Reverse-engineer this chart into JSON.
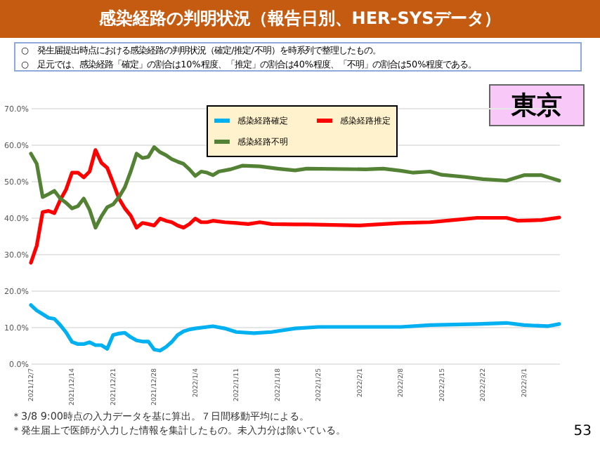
{
  "chart_data": {
    "type": "line",
    "title": "感染経路の判明状況（報告日別、HER-SYSデータ）",
    "subtitle": "東京",
    "annotations": [
      "○　発生届提出時点における感染経路の判明状況（確定/推定/不明）を時系列で整理したもの。",
      "○　足元では、感染経路「確定」の割合は10%程度、「推定」の割合は40%程度、「不明」の割合は50%程度である。",
      "＊3/8 9:00時点の入力データを基に算出。７日間移動平均による。",
      "＊発生届上で医師が入力した情報を集計したもの。未入力分は除いている。",
      "53"
    ],
    "xlim": [
      "2021-12-07",
      "2022-03-07"
    ],
    "xticks": [
      {
        "value": "2021-12-07",
        "label": "2021/12/7"
      },
      {
        "value": "2021-12-14",
        "label": "2021/12/14"
      },
      {
        "value": "2021-12-21",
        "label": "2021/12/21"
      },
      {
        "value": "2021-12-28",
        "label": "2021/12/28"
      },
      {
        "value": "2022-01-04",
        "label": "2022/1/4"
      },
      {
        "value": "2022-01-11",
        "label": "2022/1/11"
      },
      {
        "value": "2022-01-18",
        "label": "2022/1/18"
      },
      {
        "value": "2022-01-25",
        "label": "2022/1/25"
      },
      {
        "value": "2022-02-01",
        "label": "2022/2/1"
      },
      {
        "value": "2022-02-08",
        "label": "2022/2/8"
      },
      {
        "value": "2022-02-15",
        "label": "2022/2/15"
      },
      {
        "value": "2022-02-22",
        "label": "2022/2/22"
      },
      {
        "value": "2022-03-01",
        "label": "2022/3/1"
      }
    ],
    "ylim": [
      0,
      70
    ],
    "yticks": [
      {
        "value": 0,
        "label": "0.0%"
      },
      {
        "value": 10,
        "label": "10.0%"
      },
      {
        "value": 20,
        "label": "20.0%"
      },
      {
        "value": 30,
        "label": "30.0%"
      },
      {
        "value": 40,
        "label": "40.0%"
      },
      {
        "value": 50,
        "label": "50.0%"
      },
      {
        "value": 60,
        "label": "60.0%"
      },
      {
        "value": 70,
        "label": "70.0%"
      }
    ],
    "grid": "y",
    "legend": "top",
    "series": [
      {
        "name": "感染経路確定",
        "color": "#00b0f0",
        "x": [
          "2021-12-07",
          "2021-12-08",
          "2021-12-09",
          "2021-12-10",
          "2021-12-11",
          "2021-12-12",
          "2021-12-13",
          "2021-12-14",
          "2021-12-15",
          "2021-12-16",
          "2021-12-17",
          "2021-12-18",
          "2021-12-19",
          "2021-12-20",
          "2021-12-21",
          "2021-12-22",
          "2021-12-23",
          "2021-12-24",
          "2021-12-25",
          "2021-12-26",
          "2021-12-27",
          "2021-12-28",
          "2021-12-29",
          "2021-12-30",
          "2021-12-31",
          "2022-01-01",
          "2022-01-02",
          "2022-01-03",
          "2022-01-04",
          "2022-01-07",
          "2022-01-09",
          "2022-01-11",
          "2022-01-14",
          "2022-01-17",
          "2022-01-21",
          "2022-01-25",
          "2022-02-01",
          "2022-02-08",
          "2022-02-13",
          "2022-02-21",
          "2022-02-26",
          "2022-03-01",
          "2022-03-05",
          "2022-03-07"
        ],
        "values": [
          16,
          14.5,
          13.5,
          12.5,
          12.2,
          10.5,
          8.5,
          5.9,
          5.3,
          5.3,
          5.8,
          5,
          5,
          4,
          7.8,
          8.2,
          8.4,
          7.2,
          6.3,
          6,
          6,
          3.8,
          3.5,
          4.5,
          5.9,
          7.8,
          8.8,
          9.3,
          9.6,
          10.2,
          9.6,
          8.6,
          8.3,
          8.6,
          9.6,
          10,
          10,
          10,
          10.5,
          10.8,
          11.1,
          10.5,
          10.2,
          10.8
        ]
      },
      {
        "name": "感染経路推定",
        "color": "#ff0000",
        "x": [
          "2021-12-07",
          "2021-12-08",
          "2021-12-09",
          "2021-12-10",
          "2021-12-11",
          "2021-12-12",
          "2021-12-13",
          "2021-12-14",
          "2021-12-15",
          "2021-12-16",
          "2021-12-17",
          "2021-12-18",
          "2021-12-19",
          "2021-12-20",
          "2021-12-21",
          "2021-12-22",
          "2021-12-23",
          "2021-12-24",
          "2021-12-25",
          "2021-12-26",
          "2021-12-27",
          "2021-12-28",
          "2021-12-29",
          "2021-12-30",
          "2021-12-31",
          "2022-01-01",
          "2022-01-02",
          "2022-01-03",
          "2022-01-04",
          "2022-01-05",
          "2022-01-06",
          "2022-01-07",
          "2022-01-09",
          "2022-01-11",
          "2022-01-13",
          "2022-01-15",
          "2022-01-17",
          "2022-01-21",
          "2022-01-23",
          "2022-02-01",
          "2022-02-08",
          "2022-02-13",
          "2022-02-17",
          "2022-02-21",
          "2022-02-26",
          "2022-02-28",
          "2022-03-04",
          "2022-03-07"
        ],
        "values": [
          27.6,
          32.3,
          41.5,
          41.8,
          41.2,
          44.8,
          47.7,
          52.3,
          52.3,
          51,
          52.6,
          58.5,
          55,
          53.6,
          49.5,
          45.2,
          42.5,
          40.5,
          37.2,
          38.5,
          38.2,
          37.8,
          39.7,
          39.1,
          38.7,
          37.8,
          37.2,
          38.2,
          39.7,
          38.7,
          38.7,
          39.1,
          38.7,
          38.5,
          38.2,
          38.7,
          38.2,
          38.1,
          38.1,
          37.8,
          38.5,
          38.7,
          39.3,
          39.9,
          39.9,
          39.1,
          39.3,
          40
        ]
      },
      {
        "name": "感染経路不明",
        "color": "#548235",
        "x": [
          "2021-12-07",
          "2021-12-08",
          "2021-12-09",
          "2021-12-10",
          "2021-12-11",
          "2021-12-12",
          "2021-12-13",
          "2021-12-14",
          "2021-12-15",
          "2021-12-16",
          "2021-12-17",
          "2021-12-18",
          "2021-12-19",
          "2021-12-20",
          "2021-12-21",
          "2021-12-22",
          "2021-12-23",
          "2021-12-24",
          "2021-12-25",
          "2021-12-26",
          "2021-12-27",
          "2021-12-28",
          "2021-12-29",
          "2021-12-30",
          "2021-12-31",
          "2022-01-01",
          "2022-01-02",
          "2022-01-03",
          "2022-01-04",
          "2022-01-05",
          "2022-01-06",
          "2022-01-07",
          "2022-01-08",
          "2022-01-10",
          "2022-01-12",
          "2022-01-15",
          "2022-01-18",
          "2022-01-21",
          "2022-01-23",
          "2022-02-02",
          "2022-02-05",
          "2022-02-08",
          "2022-02-10",
          "2022-02-13",
          "2022-02-15",
          "2022-02-19",
          "2022-02-22",
          "2022-02-26",
          "2022-03-01",
          "2022-03-04",
          "2022-03-07"
        ],
        "values": [
          57.5,
          54.7,
          45.6,
          46.4,
          47.3,
          45.2,
          44,
          42.5,
          43.1,
          45.2,
          42.1,
          37.2,
          40.3,
          42.8,
          43.6,
          45.6,
          48.3,
          52.6,
          57.5,
          56.3,
          56.6,
          59.3,
          57.9,
          57.1,
          56,
          55.3,
          54.7,
          53.2,
          51.4,
          52.6,
          52.3,
          51.6,
          52.6,
          53.2,
          54.2,
          54,
          53.4,
          52.9,
          53.4,
          53.2,
          53.4,
          52.8,
          52.3,
          52.6,
          51.7,
          51.1,
          50.5,
          50.1,
          51.6,
          51.6,
          50.1
        ]
      }
    ]
  }
}
